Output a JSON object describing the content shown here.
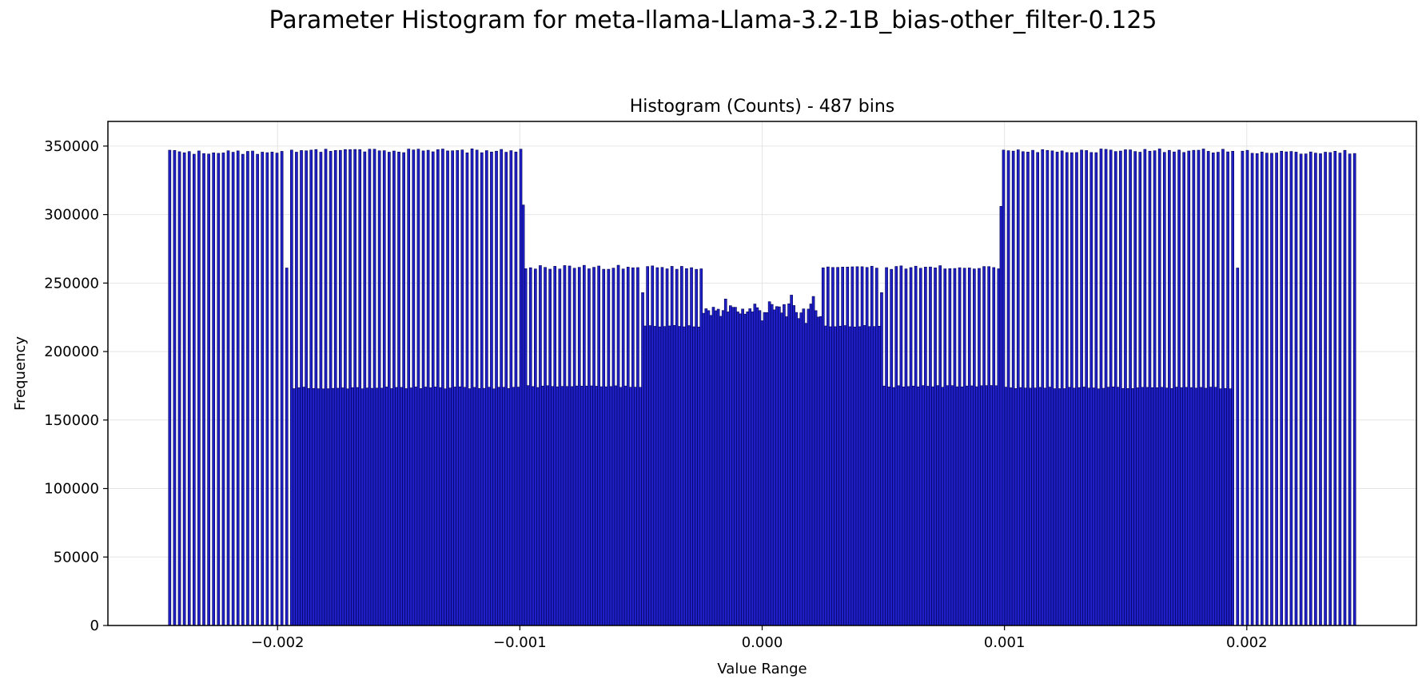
{
  "figure": {
    "suptitle": "Parameter Histogram for meta-llama-Llama-3.2-1B_bias-other_filter-0.125"
  },
  "chart_data": {
    "type": "bar",
    "title": "Histogram (Counts) - 487 bins",
    "xlabel": "Value Range",
    "ylabel": "Frequency",
    "xlim": [
      -0.0027,
      0.0027
    ],
    "ylim": [
      0,
      368000
    ],
    "xticks": [
      -0.002,
      -0.001,
      0.0,
      0.001,
      0.002
    ],
    "xtick_labels": [
      "−0.002",
      "−0.001",
      "0.000",
      "0.001",
      "0.002"
    ],
    "yticks": [
      0,
      50000,
      100000,
      150000,
      200000,
      250000,
      300000,
      350000
    ],
    "ytick_labels": [
      "0",
      "50000",
      "100000",
      "150000",
      "200000",
      "250000",
      "300000",
      "350000"
    ],
    "grid": true,
    "bar_color": "#2020c8",
    "edge_color": "#000050",
    "bins": 487,
    "range": [
      -0.00245,
      0.00245
    ],
    "pattern_note": "values list approximate per-bin counts estimated from the plot",
    "segments": [
      {
        "from": -0.00245,
        "to": -0.00195,
        "high": 347000,
        "low": 0
      },
      {
        "from": -0.00195,
        "to": -0.00098,
        "high": 348000,
        "low": 173500
      },
      {
        "from": -0.00098,
        "to": -0.0005,
        "high": 263000,
        "low": 174500
      },
      {
        "from": -0.0005,
        "to": -0.00025,
        "high": 263000,
        "low": 218500
      },
      {
        "from": -0.00025,
        "to": 0.00025,
        "high": 242000,
        "low": 219000
      },
      {
        "from": 0.00025,
        "to": 0.0005,
        "high": 263000,
        "low": 218500
      },
      {
        "from": 0.0005,
        "to": 0.00098,
        "high": 263000,
        "low": 174500
      },
      {
        "from": 0.00098,
        "to": 0.00195,
        "high": 348000,
        "low": 173500
      },
      {
        "from": 0.00195,
        "to": 0.00245,
        "high": 347000,
        "low": 0
      }
    ],
    "peaks": [
      {
        "x": -0.00196,
        "value": 261000
      },
      {
        "x": -0.00099,
        "value": 307000
      },
      {
        "x": -0.00049,
        "value": 243000
      },
      {
        "x": 0.00049,
        "value": 243000
      },
      {
        "x": 0.00099,
        "value": 306000
      },
      {
        "x": 0.00196,
        "value": 261000
      }
    ]
  }
}
